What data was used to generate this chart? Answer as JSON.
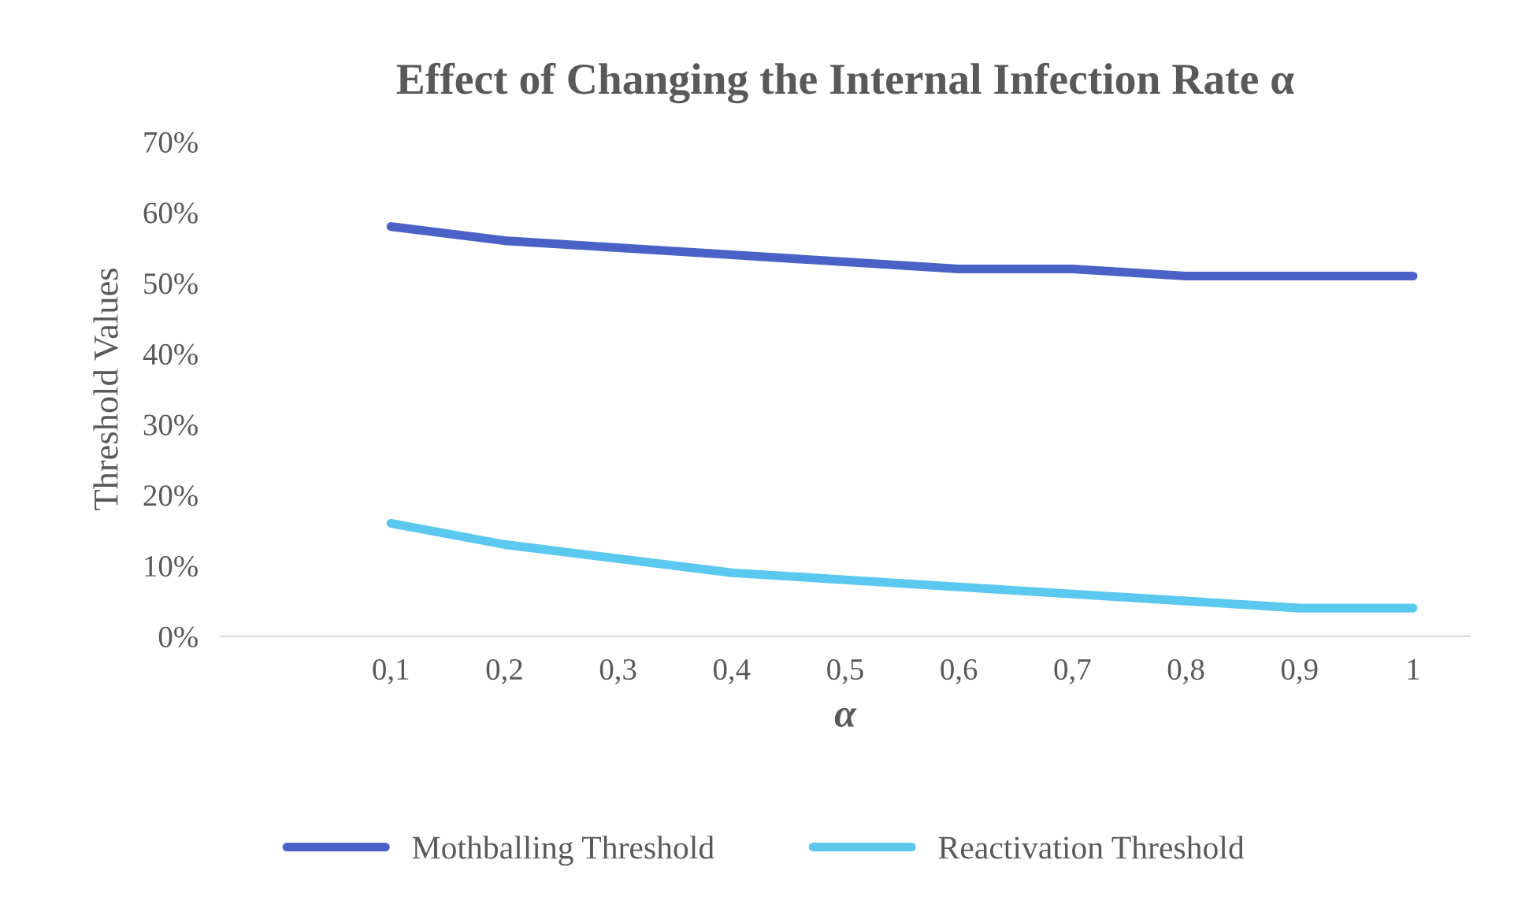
{
  "chart_data": {
    "type": "line",
    "title": "Effect of Changing the Internal Infection Rate α",
    "xlabel": "α",
    "ylabel": "Threshold Values",
    "categories": [
      null,
      "0,1",
      "0,2",
      "0,3",
      "0,4",
      "0,5",
      "0,6",
      "0,7",
      "0,8",
      "0,9",
      "1"
    ],
    "series": [
      {
        "name": "Mothballing Threshold",
        "color": "#4a62c8",
        "values": [
          null,
          58,
          56,
          55,
          54,
          53,
          52,
          52,
          51,
          51,
          51
        ]
      },
      {
        "name": "Reactivation Threshold",
        "color": "#5bc8f0",
        "values": [
          null,
          16,
          13,
          11,
          9,
          8,
          7,
          6,
          5,
          4,
          4
        ]
      }
    ],
    "ylim": [
      0,
      70
    ],
    "yticks": [
      {
        "value": 0,
        "label": "0%"
      },
      {
        "value": 10,
        "label": "10%"
      },
      {
        "value": 20,
        "label": "20%"
      },
      {
        "value": 30,
        "label": "30%"
      },
      {
        "value": 40,
        "label": "40%"
      },
      {
        "value": 50,
        "label": "50%"
      },
      {
        "value": 60,
        "label": "60%"
      },
      {
        "value": 70,
        "label": "70%"
      }
    ],
    "grid": false,
    "legend": "bottom",
    "marker": "none",
    "line_style": "solid"
  }
}
